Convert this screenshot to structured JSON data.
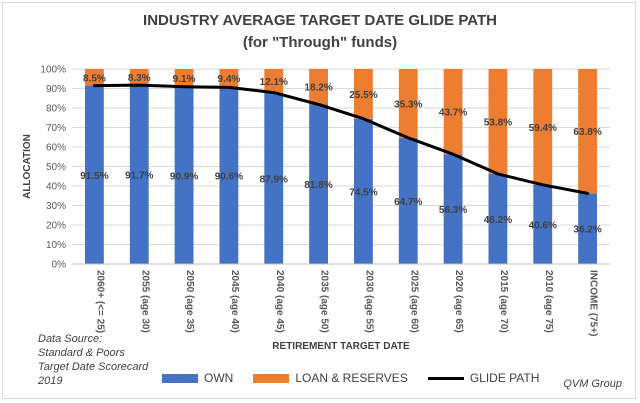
{
  "chart_data": {
    "type": "bar",
    "title": "INDUSTRY AVERAGE TARGET DATE GLIDE PATH",
    "subtitle": "(for \"Through\" funds)",
    "xlabel": "RETIREMENT TARGET DATE",
    "ylabel": "ALLOCATION",
    "ylim": [
      0,
      100
    ],
    "yticks": [
      "0%",
      "10%",
      "20%",
      "30%",
      "40%",
      "50%",
      "60%",
      "70%",
      "80%",
      "90%",
      "100%"
    ],
    "categories": [
      "2060+ (<= 25)",
      "2055 (age 30)",
      "2050 (age 35)",
      "2045 (age 40)",
      "2040 (age 45)",
      "2035 (age 50)",
      "2030 (age 55)",
      "2025 (age 60)",
      "2020 (age 65)",
      "2015 (age 70)",
      "2010 (age 75)",
      "INCOME (75+)"
    ],
    "stacked": true,
    "series": [
      {
        "name": "OWN",
        "type": "bar",
        "color": "#4472c4",
        "values": [
          91.5,
          91.7,
          90.9,
          90.6,
          87.9,
          81.8,
          74.5,
          64.7,
          56.3,
          46.2,
          40.6,
          36.2
        ],
        "labels": [
          "91.5%",
          "91.7%",
          "90.9%",
          "90.6%",
          "87.9%",
          "81.8%",
          "74.5%",
          "64.7%",
          "56.3%",
          "46.2%",
          "40.6%",
          "36.2%"
        ]
      },
      {
        "name": "LOAN & RESERVES",
        "type": "bar",
        "color": "#ed7d31",
        "values": [
          8.5,
          8.3,
          9.1,
          9.4,
          12.1,
          18.2,
          25.5,
          35.3,
          43.7,
          53.8,
          59.4,
          63.8
        ],
        "labels": [
          "8.5%",
          "8.3%",
          "9.1%",
          "9.4%",
          "12.1%",
          "18.2%",
          "25.5%",
          "35.3%",
          "43.7%",
          "53.8%",
          "59.4%",
          "63.8%"
        ]
      },
      {
        "name": "GLIDE PATH",
        "type": "line",
        "color": "#000000",
        "values": [
          91.5,
          91.7,
          90.9,
          90.6,
          87.9,
          81.8,
          74.5,
          64.7,
          56.3,
          46.2,
          40.6,
          36.2
        ]
      }
    ],
    "grid": true,
    "legend": "bottom"
  },
  "source_lines": [
    "Data Source:",
    "Standard & Poors",
    "Target Date Scorecard",
    "2019"
  ],
  "brand": "QVM Group"
}
